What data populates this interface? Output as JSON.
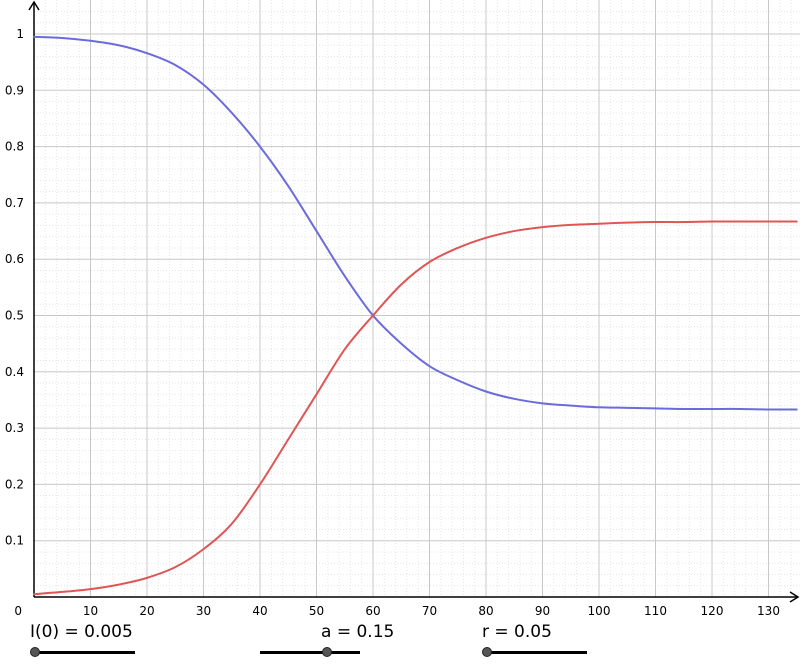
{
  "chart_data": {
    "type": "line",
    "title": "",
    "xlabel": "",
    "ylabel": "",
    "xlim": [
      0,
      135
    ],
    "ylim": [
      0,
      1.0
    ],
    "x_ticks": [
      10,
      20,
      30,
      40,
      50,
      60,
      70,
      80,
      90,
      100,
      110,
      120,
      130
    ],
    "y_ticks": [
      0.1,
      0.2,
      0.3,
      0.4,
      0.5,
      0.6,
      0.7,
      0.8,
      0.9,
      1
    ],
    "origin_label": "0",
    "grid": true,
    "x": [
      0,
      5,
      10,
      15,
      20,
      25,
      30,
      35,
      40,
      45,
      50,
      55,
      60,
      65,
      70,
      75,
      80,
      85,
      90,
      95,
      100,
      105,
      110,
      115,
      120,
      125,
      130,
      135
    ],
    "series": [
      {
        "color": "#6b6bdb",
        "values": [
          0.995,
          0.993,
          0.988,
          0.98,
          0.966,
          0.945,
          0.91,
          0.86,
          0.8,
          0.73,
          0.65,
          0.57,
          0.5,
          0.45,
          0.41,
          0.385,
          0.365,
          0.352,
          0.344,
          0.34,
          0.337,
          0.336,
          0.335,
          0.334,
          0.334,
          0.334,
          0.333,
          0.333
        ]
      },
      {
        "color": "#e05555",
        "values": [
          0.005,
          0.009,
          0.014,
          0.022,
          0.034,
          0.053,
          0.085,
          0.13,
          0.2,
          0.28,
          0.36,
          0.44,
          0.5,
          0.555,
          0.595,
          0.62,
          0.638,
          0.65,
          0.657,
          0.661,
          0.663,
          0.665,
          0.666,
          0.666,
          0.667,
          0.667,
          0.667,
          0.667
        ]
      }
    ]
  },
  "sliders": [
    {
      "label": "I(0) = 0.005",
      "value": 0.0
    },
    {
      "label": "a = 0.15",
      "value": 0.66
    },
    {
      "label": "r = 0.05",
      "value": 0.0
    }
  ]
}
